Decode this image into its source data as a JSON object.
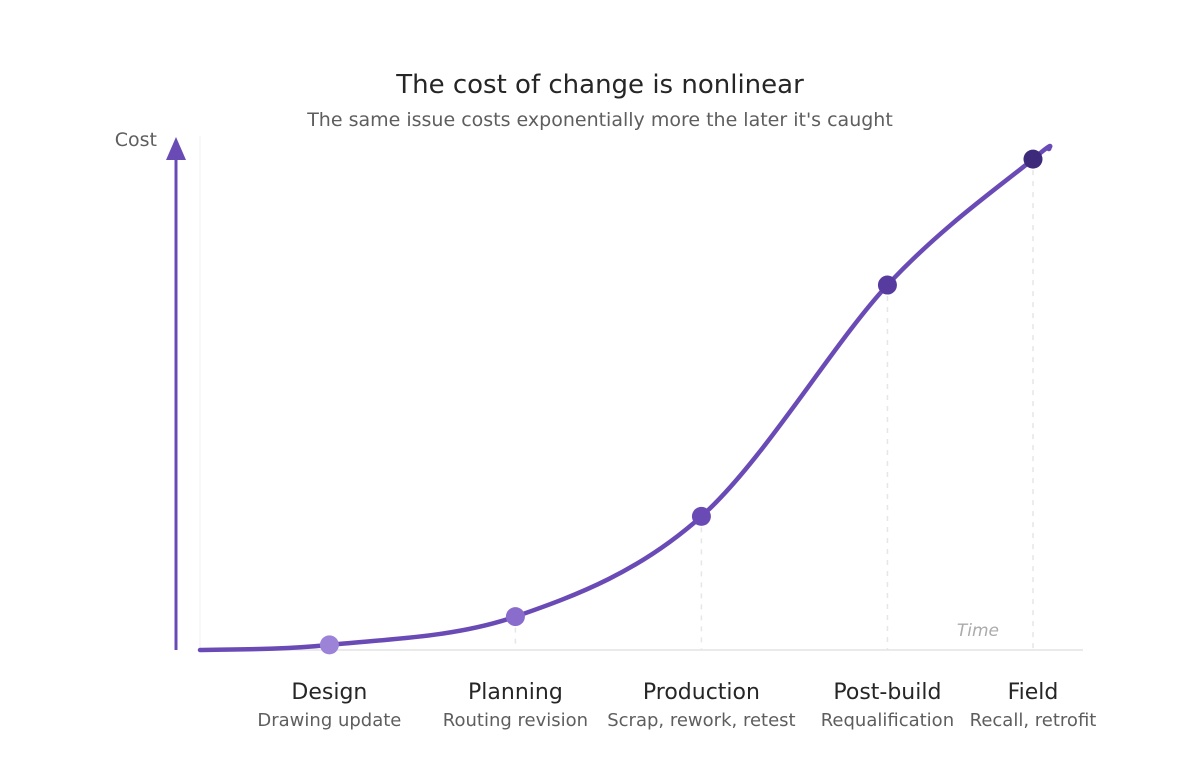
{
  "chart_data": {
    "type": "line",
    "title": "The cost of change is nonlinear",
    "subtitle": "The same issue costs exponentially more the later it's caught",
    "ylabel": "Cost",
    "xlabel": "Time",
    "grid": false,
    "legend": "none",
    "categories": [
      "Design",
      "Planning",
      "Production",
      "Post-build",
      "Field"
    ],
    "category_notes": [
      "Drawing update",
      "Routing revision",
      "Scrap, rework, retest",
      "Requalification",
      "Recall, retrofit"
    ],
    "x": [
      0.13,
      0.36,
      0.59,
      0.82,
      1.0
    ],
    "values": [
      0.01,
      0.065,
      0.26,
      0.71,
      0.955
    ],
    "xlim": [
      -0.03,
      1.0
    ],
    "ylim": [
      0,
      1
    ],
    "curve_start": [
      -0.03,
      0
    ],
    "curve_end": [
      1.02,
      0.975
    ],
    "colors": {
      "line": "#6a4bb6",
      "axis_arrow": "#6a4bb6",
      "baseline": "#e3e3e3",
      "guide": "#e6e6e6",
      "points": [
        "#9d83d8",
        "#8a6ccd",
        "#6a4bb6",
        "#573b9e",
        "#3e2a7a"
      ]
    }
  }
}
